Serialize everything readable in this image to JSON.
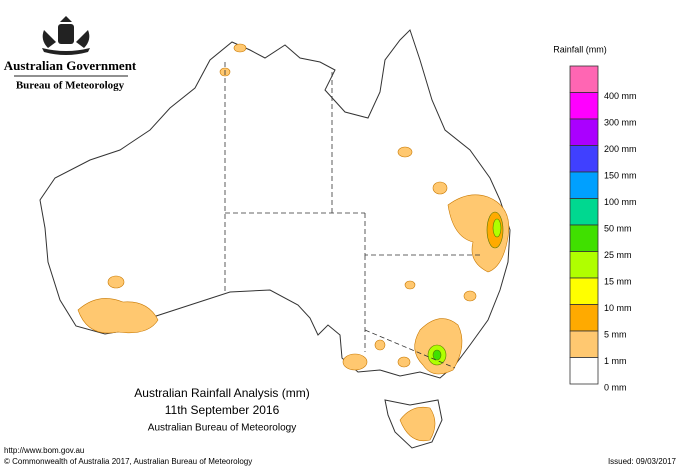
{
  "header": {
    "agency": "Australian Government",
    "bureau": "Bureau of Meteorology"
  },
  "legend": {
    "title": "Rainfall (mm)",
    "colors": [
      "#ff66b3",
      "#ff00ff",
      "#aa00ff",
      "#4040ff",
      "#00a0ff",
      "#00d890",
      "#40e000",
      "#b0ff00",
      "#ffff00",
      "#ffaa00",
      "#ffc870",
      "#ffffff"
    ],
    "labels": [
      "400 mm",
      "300 mm",
      "200 mm",
      "150 mm",
      "100 mm",
      "50 mm",
      "25 mm",
      "15 mm",
      "10 mm",
      "5 mm",
      "1 mm",
      "0 mm"
    ]
  },
  "map": {
    "title": "Australian Rainfall Analysis (mm)",
    "date": "11th September 2016",
    "source": "Australian Bureau of Meteorology"
  },
  "footer": {
    "url": "http://www.bom.gov.au",
    "copyright": "© Commonwealth of Australia 2017, Australian Bureau of Meteorology",
    "issued": "Issued: 09/03/2017"
  }
}
